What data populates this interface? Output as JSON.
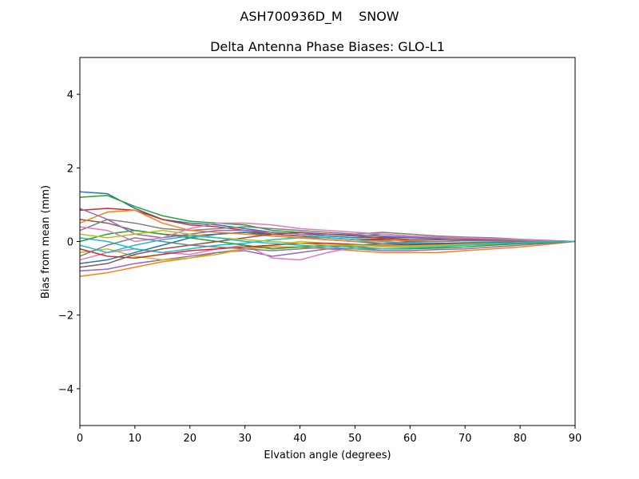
{
  "chart_data": {
    "type": "line",
    "suptitle": "ASH700936D_M    SNOW",
    "title": "Delta Antenna Phase Biases: GLO-L1",
    "xlabel": "Elvation angle (degrees)",
    "ylabel": "Bias from mean (mm)",
    "x": [
      0,
      5,
      10,
      15,
      20,
      25,
      30,
      35,
      40,
      45,
      50,
      55,
      60,
      65,
      70,
      75,
      80,
      85,
      90
    ],
    "xlim": [
      0,
      90
    ],
    "xticks": [
      0,
      10,
      20,
      30,
      40,
      50,
      60,
      70,
      80,
      90
    ],
    "ylim": [
      -5,
      5
    ],
    "yticks": [
      {
        "value": -4,
        "label": "−4"
      },
      {
        "value": -2,
        "label": "−2"
      },
      0,
      2,
      4
    ],
    "series": [
      {
        "color": "#1f77b4",
        "values": [
          1.35,
          1.3,
          0.9,
          0.6,
          0.5,
          0.45,
          0.35,
          0.25,
          0.2,
          0.15,
          0.1,
          0.12,
          0.1,
          0.08,
          0.1,
          0.08,
          0.05,
          0.02,
          0
        ]
      },
      {
        "color": "#ff7f0e",
        "values": [
          -0.95,
          -0.85,
          -0.7,
          -0.55,
          -0.45,
          -0.3,
          -0.2,
          -0.15,
          -0.15,
          -0.2,
          -0.25,
          -0.3,
          -0.3,
          -0.3,
          -0.25,
          -0.2,
          -0.15,
          -0.08,
          0
        ]
      },
      {
        "color": "#2ca02c",
        "values": [
          1.2,
          1.25,
          0.95,
          0.7,
          0.55,
          0.5,
          0.45,
          0.3,
          0.25,
          0.2,
          0.15,
          0.2,
          0.15,
          0.1,
          0.1,
          0.08,
          0.05,
          0.02,
          0
        ]
      },
      {
        "color": "#d62728",
        "values": [
          0.85,
          0.9,
          0.85,
          0.6,
          0.45,
          0.4,
          0.3,
          0.2,
          0.15,
          0.1,
          0.05,
          0.08,
          0.05,
          0.05,
          0.05,
          0.05,
          0.03,
          0.01,
          0
        ]
      },
      {
        "color": "#9467bd",
        "values": [
          -0.8,
          -0.75,
          -0.6,
          -0.5,
          -0.4,
          -0.3,
          -0.25,
          -0.4,
          -0.3,
          -0.2,
          -0.2,
          -0.25,
          -0.25,
          -0.22,
          -0.2,
          -0.15,
          -0.1,
          -0.05,
          0
        ]
      },
      {
        "color": "#8c564b",
        "values": [
          0.6,
          0.5,
          0.3,
          0.2,
          0.15,
          0.2,
          0.25,
          0.2,
          0.15,
          0.1,
          0.05,
          0.05,
          0.0,
          0.0,
          0.02,
          0.02,
          0.01,
          0,
          0
        ]
      },
      {
        "color": "#e377c2",
        "values": [
          -0.5,
          -0.3,
          -0.2,
          -0.3,
          -0.35,
          -0.2,
          -0.1,
          -0.45,
          -0.5,
          -0.3,
          -0.15,
          -0.1,
          -0.1,
          -0.1,
          -0.08,
          -0.05,
          -0.03,
          -0.01,
          0
        ]
      },
      {
        "color": "#7f7f7f",
        "values": [
          0.3,
          0.6,
          0.5,
          0.35,
          0.3,
          0.35,
          0.4,
          0.35,
          0.3,
          0.25,
          0.2,
          0.25,
          0.2,
          0.15,
          0.12,
          0.1,
          0.06,
          0.03,
          0
        ]
      },
      {
        "color": "#bcbd22",
        "values": [
          -0.3,
          -0.2,
          -0.4,
          -0.5,
          -0.45,
          -0.35,
          -0.2,
          -0.1,
          0,
          -0.05,
          -0.1,
          -0.15,
          -0.15,
          -0.12,
          -0.1,
          -0.08,
          -0.05,
          -0.02,
          0
        ]
      },
      {
        "color": "#17becf",
        "values": [
          0.1,
          0.0,
          -0.2,
          -0.3,
          -0.2,
          -0.1,
          -0.05,
          0.05,
          0.1,
          0.1,
          0.05,
          0,
          -0.05,
          -0.05,
          -0.03,
          -0.02,
          -0.01,
          0,
          0
        ]
      },
      {
        "color": "#1f77b4",
        "values": [
          -0.6,
          -0.5,
          -0.3,
          -0.1,
          0.1,
          0.2,
          0.25,
          0.15,
          0.1,
          0.05,
          0,
          -0.05,
          -0.08,
          -0.05,
          -0.05,
          -0.03,
          -0.02,
          -0.01,
          0
        ]
      },
      {
        "color": "#ff7f0e",
        "values": [
          0.5,
          0.8,
          0.85,
          0.5,
          0.3,
          0.25,
          0.2,
          0.15,
          0.1,
          0.05,
          0,
          0.02,
          0.03,
          0.05,
          0.05,
          0.04,
          0.02,
          0.01,
          0
        ]
      },
      {
        "color": "#2ca02c",
        "values": [
          0.0,
          0.2,
          0.3,
          0.2,
          0.1,
          0.0,
          -0.1,
          -0.2,
          -0.15,
          -0.1,
          -0.15,
          -0.2,
          -0.2,
          -0.18,
          -0.15,
          -0.1,
          -0.06,
          -0.03,
          0
        ]
      },
      {
        "color": "#d62728",
        "values": [
          -0.2,
          -0.4,
          -0.45,
          -0.35,
          -0.25,
          -0.2,
          -0.15,
          -0.1,
          -0.05,
          -0.05,
          -0.08,
          -0.1,
          -0.1,
          -0.08,
          -0.06,
          -0.04,
          -0.02,
          -0.01,
          0
        ]
      },
      {
        "color": "#9467bd",
        "values": [
          0.9,
          0.6,
          0.2,
          0.1,
          0.2,
          0.3,
          0.3,
          0.25,
          0.2,
          0.2,
          0.18,
          0.15,
          0.12,
          0.1,
          0.08,
          0.06,
          0.04,
          0.02,
          0
        ]
      },
      {
        "color": "#8c564b",
        "values": [
          -0.7,
          -0.6,
          -0.35,
          -0.2,
          -0.1,
          0,
          0.1,
          0.2,
          0.25,
          0.2,
          0.15,
          0.1,
          0.05,
          0.05,
          0.05,
          0.03,
          0.02,
          0.01,
          0
        ]
      },
      {
        "color": "#e377c2",
        "values": [
          0.4,
          0.3,
          0.0,
          0.1,
          0.35,
          0.5,
          0.5,
          0.45,
          0.35,
          0.3,
          0.25,
          0.2,
          0.15,
          0.12,
          0.1,
          0.08,
          0.05,
          0.02,
          0
        ]
      },
      {
        "color": "#7f7f7f",
        "values": [
          -0.4,
          -0.1,
          0.1,
          0.0,
          -0.1,
          -0.15,
          -0.2,
          -0.25,
          -0.2,
          -0.15,
          -0.1,
          -0.05,
          -0.02,
          0,
          0.02,
          0.02,
          0.01,
          0,
          0
        ]
      },
      {
        "color": "#bcbd22",
        "values": [
          0.2,
          0.1,
          0.2,
          0.3,
          0.2,
          0.1,
          0.05,
          0.0,
          -0.05,
          -0.1,
          -0.1,
          -0.12,
          -0.12,
          -0.1,
          -0.07,
          -0.05,
          -0.03,
          -0.01,
          0
        ]
      },
      {
        "color": "#17becf",
        "values": [
          -0.1,
          -0.3,
          -0.1,
          0.05,
          0.15,
          0.1,
          0.0,
          -0.05,
          -0.1,
          -0.15,
          -0.2,
          -0.2,
          -0.18,
          -0.15,
          -0.1,
          -0.06,
          -0.03,
          -0.01,
          0
        ]
      }
    ]
  }
}
